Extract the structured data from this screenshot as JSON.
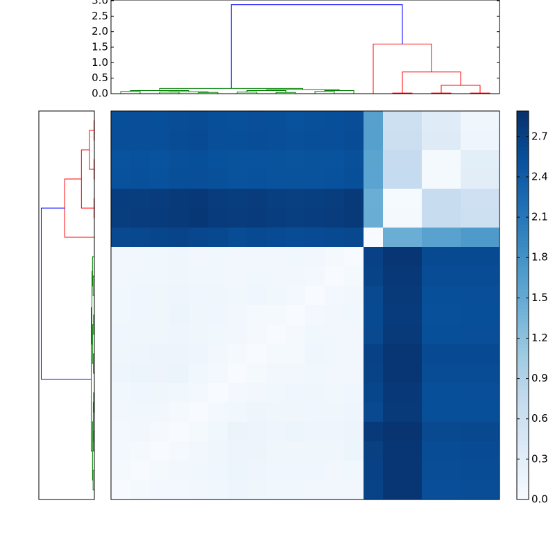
{
  "chart_data": [
    {
      "type": "heatmap",
      "clim": [
        0,
        2.89
      ],
      "colors": [
        "#f7fbff",
        "#deebf7",
        "#c6dbef",
        "#9ecae1",
        "#6baed6",
        "#4292c6",
        "#2171b5",
        "#08519c",
        "#08306b"
      ],
      "cticks": [
        {
          "value": 0,
          "label": "0.0"
        },
        {
          "value": 0.3,
          "label": "0.3"
        },
        {
          "value": 0.6,
          "label": "0.6"
        },
        {
          "value": 0.9,
          "label": "0.9"
        },
        {
          "value": 1.2,
          "label": "1.2"
        },
        {
          "value": 1.5,
          "label": "1.5"
        },
        {
          "value": 1.8,
          "label": "1.8"
        },
        {
          "value": 2.1,
          "label": "2.1"
        },
        {
          "value": 2.4,
          "label": "2.4"
        },
        {
          "value": 2.7,
          "label": "2.7"
        }
      ],
      "values": [
        [
          2.55,
          2.56,
          2.55,
          2.57,
          2.58,
          2.55,
          2.54,
          2.56,
          2.55,
          2.53,
          2.54,
          2.55,
          2.57,
          1.62,
          0.62,
          0.62,
          0.35,
          0.35,
          0.12,
          0.12
        ],
        [
          2.56,
          2.56,
          2.56,
          2.58,
          2.59,
          2.56,
          2.55,
          2.57,
          2.56,
          2.54,
          2.55,
          2.56,
          2.58,
          1.63,
          0.63,
          0.63,
          0.36,
          0.36,
          0.13,
          0.13
        ],
        [
          2.52,
          2.53,
          2.52,
          2.54,
          2.55,
          2.53,
          2.51,
          2.52,
          2.51,
          2.5,
          2.51,
          2.52,
          2.54,
          1.58,
          0.72,
          0.72,
          0.04,
          0.04,
          0.3,
          0.3
        ],
        [
          2.53,
          2.54,
          2.53,
          2.55,
          2.56,
          2.54,
          2.52,
          2.53,
          2.52,
          2.51,
          2.52,
          2.53,
          2.55,
          1.59,
          0.73,
          0.73,
          0.05,
          0.05,
          0.31,
          0.31
        ],
        [
          2.74,
          2.75,
          2.76,
          2.78,
          2.8,
          2.76,
          2.75,
          2.76,
          2.73,
          2.72,
          2.73,
          2.75,
          2.78,
          1.45,
          0.03,
          0.03,
          0.7,
          0.7,
          0.6,
          0.6
        ],
        [
          2.75,
          2.76,
          2.77,
          2.79,
          2.81,
          2.77,
          2.76,
          2.77,
          2.74,
          2.73,
          2.74,
          2.76,
          2.79,
          1.46,
          0.04,
          0.04,
          0.71,
          0.71,
          0.61,
          0.61
        ],
        [
          2.62,
          2.63,
          2.65,
          2.67,
          2.64,
          2.63,
          2.58,
          2.6,
          2.59,
          2.58,
          2.59,
          2.6,
          2.63,
          0,
          1.45,
          1.45,
          1.6,
          1.6,
          1.7,
          1.7
        ],
        [
          0.08,
          0.09,
          0.1,
          0.11,
          0.09,
          0.1,
          0.08,
          0.09,
          0.08,
          0.1,
          0.08,
          0.05,
          0,
          2.7,
          2.82,
          2.82,
          2.6,
          2.6,
          2.6,
          2.6
        ],
        [
          0.09,
          0.1,
          0.1,
          0.12,
          0.1,
          0.1,
          0.09,
          0.1,
          0.09,
          0.08,
          0.07,
          0,
          0.05,
          2.68,
          2.8,
          2.8,
          2.58,
          2.58,
          2.58,
          2.58
        ],
        [
          0.1,
          0.11,
          0.12,
          0.13,
          0.11,
          0.12,
          0.1,
          0.11,
          0.1,
          0.06,
          0,
          0.07,
          0.08,
          2.62,
          2.78,
          2.78,
          2.55,
          2.55,
          2.56,
          2.56
        ],
        [
          0.1,
          0.11,
          0.12,
          0.14,
          0.12,
          0.11,
          0.09,
          0.05,
          0.04,
          0,
          0.06,
          0.08,
          0.1,
          2.6,
          2.77,
          2.77,
          2.54,
          2.54,
          2.55,
          2.55
        ],
        [
          0.11,
          0.12,
          0.12,
          0.13,
          0.12,
          0.1,
          0.08,
          0.04,
          0,
          0.04,
          0.1,
          0.09,
          0.08,
          2.62,
          2.78,
          2.78,
          2.55,
          2.55,
          2.56,
          2.56
        ],
        [
          0.12,
          0.13,
          0.14,
          0.15,
          0.13,
          0.08,
          0.05,
          0,
          0.04,
          0.05,
          0.11,
          0.1,
          0.09,
          2.7,
          2.82,
          2.82,
          2.6,
          2.6,
          2.6,
          2.6
        ],
        [
          0.13,
          0.14,
          0.15,
          0.16,
          0.1,
          0.07,
          0,
          0.05,
          0.08,
          0.09,
          0.1,
          0.08,
          0.08,
          2.68,
          2.83,
          2.83,
          2.58,
          2.58,
          2.58,
          2.58
        ],
        [
          0.1,
          0.11,
          0.12,
          0.1,
          0.06,
          0,
          0.07,
          0.08,
          0.1,
          0.11,
          0.12,
          0.1,
          0.11,
          2.65,
          2.8,
          2.8,
          2.55,
          2.55,
          2.56,
          2.56
        ],
        [
          0.09,
          0.1,
          0.08,
          0.05,
          0,
          0.06,
          0.1,
          0.13,
          0.12,
          0.12,
          0.11,
          0.12,
          0.13,
          2.62,
          2.79,
          2.79,
          2.55,
          2.55,
          2.55,
          2.55
        ],
        [
          0.07,
          0.08,
          0.05,
          0,
          0.05,
          0.1,
          0.16,
          0.15,
          0.13,
          0.14,
          0.13,
          0.13,
          0.15,
          2.78,
          2.84,
          2.84,
          2.62,
          2.62,
          2.63,
          2.63
        ],
        [
          0.06,
          0.05,
          0,
          0.05,
          0.08,
          0.12,
          0.15,
          0.14,
          0.12,
          0.12,
          0.12,
          0.12,
          0.14,
          2.72,
          2.83,
          2.83,
          2.58,
          2.58,
          2.59,
          2.59
        ],
        [
          0.05,
          0,
          0.05,
          0.08,
          0.1,
          0.11,
          0.14,
          0.13,
          0.11,
          0.11,
          0.11,
          0.09,
          0.1,
          2.7,
          2.82,
          2.82,
          2.57,
          2.57,
          2.58,
          2.58
        ],
        [
          0,
          0.05,
          0.06,
          0.07,
          0.09,
          0.1,
          0.13,
          0.12,
          0.1,
          0.1,
          0.09,
          0.09,
          0.08,
          2.68,
          2.82,
          2.82,
          2.56,
          2.56,
          2.57,
          2.57
        ]
      ]
    },
    {
      "type": "dendrogram",
      "xlim": [
        0,
        200
      ],
      "ylim": [
        0,
        3.0
      ],
      "yticks": [
        {
          "value": 0,
          "label": "0.0"
        },
        {
          "value": 0.5,
          "label": "0.5"
        },
        {
          "value": 1,
          "label": "1.0"
        },
        {
          "value": 1.5,
          "label": "1.5"
        },
        {
          "value": 2,
          "label": "2.0"
        },
        {
          "value": 2.5,
          "label": "2.5"
        },
        {
          "value": 3,
          "label": "3.0"
        }
      ],
      "links": [
        {
          "x": [
            5,
            5,
            15,
            15
          ],
          "y": [
            0,
            0.07,
            0.07,
            0
          ],
          "color": "#008000"
        },
        {
          "x": [
            25,
            25,
            35,
            35
          ],
          "y": [
            0,
            0.05,
            0.05,
            0
          ],
          "color": "#008000"
        },
        {
          "x": [
            45,
            45,
            55,
            55
          ],
          "y": [
            0,
            0.04,
            0.04,
            0
          ],
          "color": "#008000"
        },
        {
          "x": [
            30,
            30,
            50,
            50
          ],
          "y": [
            0.05,
            0.06,
            0.06,
            0.04
          ],
          "color": "#008000"
        },
        {
          "x": [
            10,
            10,
            40,
            40
          ],
          "y": [
            0.07,
            0.1,
            0.1,
            0.06
          ],
          "color": "#008000"
        },
        {
          "x": [
            65,
            65,
            75,
            75
          ],
          "y": [
            0,
            0.05,
            0.05,
            0
          ],
          "color": "#008000"
        },
        {
          "x": [
            85,
            85,
            95,
            95
          ],
          "y": [
            0,
            0.04,
            0.04,
            0
          ],
          "color": "#008000"
        },
        {
          "x": [
            70,
            70,
            90,
            90
          ],
          "y": [
            0.05,
            0.1,
            0.1,
            0.04
          ],
          "color": "#008000"
        },
        {
          "x": [
            105,
            105,
            115,
            115
          ],
          "y": [
            0,
            0.07,
            0.07,
            0
          ],
          "color": "#008000"
        },
        {
          "x": [
            110,
            110,
            125,
            125
          ],
          "y": [
            0.07,
            0.1,
            0.1,
            0
          ],
          "color": "#008000"
        },
        {
          "x": [
            80,
            80,
            117.5,
            117.5
          ],
          "y": [
            0.1,
            0.13,
            0.13,
            0.1
          ],
          "color": "#008000"
        },
        {
          "x": [
            25,
            25,
            98.75,
            98.75
          ],
          "y": [
            0.1,
            0.17,
            0.17,
            0.13
          ],
          "color": "#008000"
        },
        {
          "x": [
            145,
            145,
            155,
            155
          ],
          "y": [
            0,
            0.02,
            0.02,
            0
          ],
          "color": "#ff0000"
        },
        {
          "x": [
            165,
            165,
            175,
            175
          ],
          "y": [
            0,
            0.02,
            0.02,
            0
          ],
          "color": "#ff0000"
        },
        {
          "x": [
            185,
            185,
            195,
            195
          ],
          "y": [
            0,
            0.02,
            0.02,
            0
          ],
          "color": "#ff0000"
        },
        {
          "x": [
            170,
            170,
            190,
            190
          ],
          "y": [
            0.02,
            0.27,
            0.27,
            0.02
          ],
          "color": "#ff0000"
        },
        {
          "x": [
            150,
            150,
            180,
            180
          ],
          "y": [
            0.02,
            0.7,
            0.7,
            0.27
          ],
          "color": "#ff0000"
        },
        {
          "x": [
            135,
            135,
            165,
            165
          ],
          "y": [
            0,
            1.6,
            1.6,
            0.7
          ],
          "color": "#ff0000"
        },
        {
          "x": [
            61.9,
            61.9,
            150,
            150
          ],
          "y": [
            0.17,
            2.87,
            2.87,
            1.6
          ],
          "color": "#0000ff"
        }
      ]
    }
  ]
}
